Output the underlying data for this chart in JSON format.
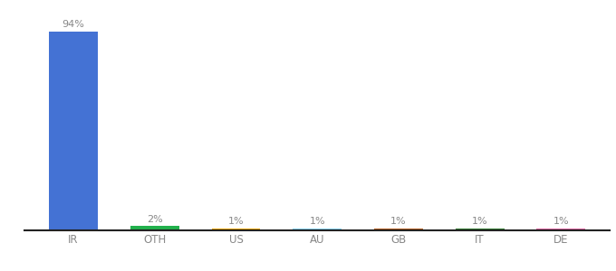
{
  "categories": [
    "IR",
    "OTH",
    "US",
    "AU",
    "GB",
    "IT",
    "DE"
  ],
  "values": [
    94,
    2,
    1,
    1,
    1,
    1,
    1
  ],
  "bar_colors": [
    "#4472d4",
    "#22b14c",
    "#f0a500",
    "#7ecff0",
    "#b85c1a",
    "#2d7a2d",
    "#e060a0"
  ],
  "ylim": [
    0,
    100
  ],
  "background_color": "#ffffff",
  "label_color": "#888888",
  "tick_color": "#888888",
  "bottom_spine_color": "#222222",
  "bar_width": 0.6,
  "figsize": [
    6.8,
    3.0
  ],
  "dpi": 100
}
